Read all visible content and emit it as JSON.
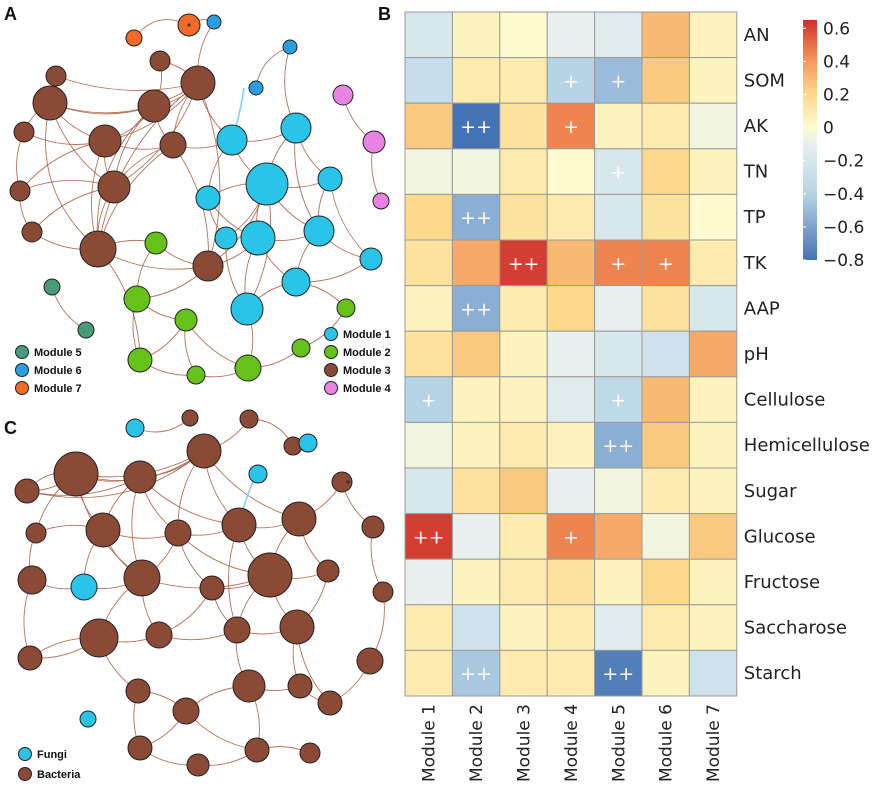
{
  "panels": {
    "a": "A",
    "b": "B",
    "c": "C"
  },
  "palette": {
    "module_1": "#29c4e8",
    "module_2": "#66c21a",
    "module_3": "#8b4a36",
    "module_4": "#e983e3",
    "module_5": "#4a9a7c",
    "module_6": "#2a9fe0",
    "module_7": "#f06a2a",
    "fungi": "#29c4e8",
    "bacteria": "#8b4a36",
    "edge": "#a8583c",
    "edge_fungi": "#7fd4f0"
  },
  "legend_a_left": [
    {
      "label": "Module 5",
      "color_key": "module_5"
    },
    {
      "label": "Module 6",
      "color_key": "module_6"
    },
    {
      "label": "Module 7",
      "color_key": "module_7"
    }
  ],
  "legend_a_right": [
    {
      "label": "Module 1",
      "color_key": "module_1"
    },
    {
      "label": "Module 2",
      "color_key": "module_2"
    },
    {
      "label": "Module 3",
      "color_key": "module_3"
    },
    {
      "label": "Module 4",
      "color_key": "module_4"
    }
  ],
  "legend_c": [
    {
      "label": "Fungi",
      "color_key": "fungi"
    },
    {
      "label": "Bacteria",
      "color_key": "bacteria"
    }
  ],
  "chart_data": {
    "type": "heatmap",
    "title": "",
    "columns": [
      "Module 1",
      "Module 2",
      "Module 3",
      "Module 4",
      "Module 5",
      "Module 6",
      "Module 7"
    ],
    "rows": [
      "AN",
      "SOM",
      "AK",
      "TN",
      "TP",
      "TK",
      "AAP",
      "pH",
      "Cellulose",
      "Hemicellulose",
      "Sugar",
      "Glucose",
      "Fructose",
      "Saccharose",
      "Starch"
    ],
    "values": [
      [
        -0.2,
        0.05,
        0.0,
        -0.1,
        -0.15,
        0.3,
        0.05
      ],
      [
        -0.3,
        0.1,
        0.1,
        -0.4,
        -0.5,
        0.25,
        0.05
      ],
      [
        0.25,
        -0.8,
        0.15,
        0.45,
        0.05,
        0.1,
        -0.05
      ],
      [
        -0.05,
        -0.05,
        0.1,
        0.0,
        -0.2,
        0.2,
        0.05
      ],
      [
        0.2,
        -0.55,
        0.15,
        0.1,
        -0.2,
        0.15,
        0.0
      ],
      [
        0.15,
        0.35,
        0.62,
        0.3,
        0.45,
        0.45,
        0.1
      ],
      [
        0.05,
        -0.55,
        0.1,
        0.2,
        -0.1,
        0.15,
        -0.2
      ],
      [
        0.15,
        0.25,
        0.05,
        -0.1,
        -0.2,
        -0.25,
        0.35
      ],
      [
        -0.4,
        0.05,
        0.05,
        -0.15,
        -0.35,
        0.3,
        0.05
      ],
      [
        -0.05,
        0.05,
        0.1,
        0.05,
        -0.55,
        0.25,
        0.05
      ],
      [
        -0.2,
        0.15,
        0.25,
        -0.1,
        -0.05,
        0.1,
        0.05
      ],
      [
        0.62,
        -0.1,
        0.1,
        0.45,
        0.35,
        -0.05,
        0.25
      ],
      [
        -0.1,
        0.05,
        0.1,
        0.15,
        0.05,
        0.2,
        0.05
      ],
      [
        0.1,
        -0.25,
        0.05,
        0.1,
        -0.15,
        0.1,
        0.05
      ],
      [
        0.1,
        -0.45,
        0.1,
        0.1,
        -0.75,
        0.05,
        -0.25
      ]
    ],
    "annotations": [
      [
        null,
        null,
        null,
        null,
        null,
        null,
        null
      ],
      [
        null,
        null,
        null,
        "+",
        "+",
        null,
        null
      ],
      [
        null,
        "++",
        null,
        "+",
        null,
        null,
        null
      ],
      [
        null,
        null,
        null,
        null,
        "+",
        null,
        null
      ],
      [
        null,
        "++",
        null,
        null,
        null,
        null,
        null
      ],
      [
        null,
        null,
        "++",
        null,
        "+",
        "+",
        null
      ],
      [
        null,
        "++",
        null,
        null,
        null,
        null,
        null
      ],
      [
        null,
        null,
        null,
        null,
        null,
        null,
        null
      ],
      [
        "+",
        null,
        null,
        null,
        "+",
        null,
        null
      ],
      [
        null,
        null,
        null,
        null,
        "++",
        null,
        null
      ],
      [
        null,
        null,
        null,
        null,
        null,
        null,
        null
      ],
      [
        "++",
        null,
        null,
        "+",
        null,
        null,
        null
      ],
      [
        null,
        null,
        null,
        null,
        null,
        null,
        null
      ],
      [
        null,
        null,
        null,
        null,
        null,
        null,
        null
      ],
      [
        null,
        "++",
        null,
        null,
        "++",
        null,
        null
      ]
    ],
    "color_scale": {
      "min": -0.8,
      "max": 0.65,
      "ticks": [
        0.6,
        0.4,
        0.2,
        0,
        -0.2,
        -0.4,
        -0.6,
        -0.8
      ],
      "tick_labels": [
        "0.6",
        "0.4",
        "0.2",
        "0",
        "−0.2",
        "−0.4",
        "−0.6",
        "−0.8"
      ],
      "stops": [
        {
          "v": -0.8,
          "c": "#4472b4"
        },
        {
          "v": -0.4,
          "c": "#b6d4e6"
        },
        {
          "v": -0.1,
          "c": "#e8f0ef"
        },
        {
          "v": 0.0,
          "c": "#fdfbcf"
        },
        {
          "v": 0.2,
          "c": "#fcd98c"
        },
        {
          "v": 0.4,
          "c": "#f59a5a"
        },
        {
          "v": 0.65,
          "c": "#d0312c"
        }
      ]
    }
  }
}
